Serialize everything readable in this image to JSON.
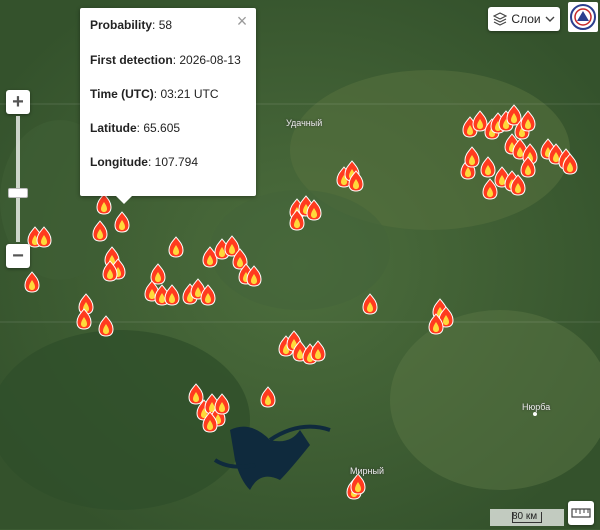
{
  "popup": {
    "fields": [
      {
        "label": "Probability",
        "value": "58"
      },
      {
        "label": "First detection",
        "value": "2026-08-13"
      },
      {
        "label": "Time (UTC)",
        "value": "03:21 UTC"
      },
      {
        "label": "Latitude",
        "value": "65.605"
      },
      {
        "label": "Longitude",
        "value": "107.794"
      }
    ],
    "close_icon": "close-icon"
  },
  "zoom": {
    "in_label": "+",
    "out_label": "−"
  },
  "layers_button": {
    "label": "Слои",
    "icon": "layers-icon"
  },
  "logo": {
    "name": "organization-logo-icon"
  },
  "map_labels": [
    {
      "name": "Удачный"
    },
    {
      "name": "Нюрба"
    },
    {
      "name": "Мирный"
    }
  ],
  "scale": {
    "label": "80 км"
  },
  "ruler_button": {
    "icon": "ruler-icon"
  },
  "fire_marker_icon": "fire-icon",
  "colors": {
    "fire_outer": "#ff3b1f",
    "fire_inner": "#ffd93b",
    "water": "#0f2a3d"
  }
}
